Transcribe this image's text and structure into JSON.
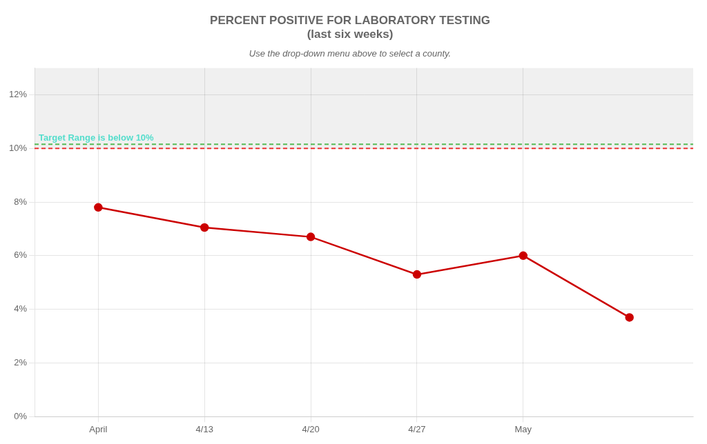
{
  "chart_data": {
    "type": "line",
    "title": [
      "PERCENT POSITIVE FOR LABORATORY TESTING",
      "(last six weeks)"
    ],
    "subtitle": "Use the drop-down menu above to select a county.",
    "x": [
      1,
      2,
      3,
      4,
      5,
      6
    ],
    "values": [
      7.8,
      7.05,
      6.7,
      5.3,
      6.0,
      3.7
    ],
    "color": "#cc0000",
    "marker": "circle",
    "xlim": [
      0.4,
      6.6
    ],
    "xticks": [
      {
        "value": 1,
        "label": "April"
      },
      {
        "value": 2,
        "label": "4/13"
      },
      {
        "value": 3,
        "label": "4/20"
      },
      {
        "value": 4,
        "label": "4/27"
      },
      {
        "value": 5,
        "label": "May"
      }
    ],
    "ylim": [
      0,
      13
    ],
    "yticks": [
      {
        "value": 0,
        "label": "0%"
      },
      {
        "value": 2,
        "label": "2%"
      },
      {
        "value": 4,
        "label": "4%"
      },
      {
        "value": 6,
        "label": "6%"
      },
      {
        "value": 8,
        "label": "8%"
      },
      {
        "value": 10,
        "label": "10%"
      },
      {
        "value": 12,
        "label": "12%"
      }
    ],
    "reference_lines": [
      {
        "y": 10,
        "color": "#ee3333"
      },
      {
        "y": 10.15,
        "color": "#55bb55"
      }
    ],
    "annotations": [
      {
        "text": "Target Range is below 10%",
        "y": 10,
        "color": "#55ddcc"
      }
    ],
    "grid": true
  }
}
